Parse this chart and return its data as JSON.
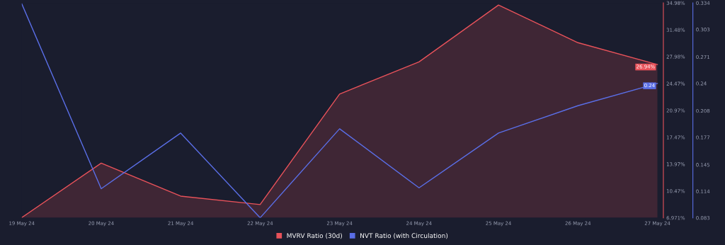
{
  "chart_data": {
    "type": "area",
    "categories": [
      "19 May 24",
      "20 May 24",
      "21 May 24",
      "22 May 24",
      "23 May 24",
      "24 May 24",
      "25 May 24",
      "26 May 24",
      "27 May 24"
    ],
    "series": [
      {
        "name": "MVRV Ratio (30d)",
        "color": "#e8525a",
        "values": [
          7.0,
          14.1,
          9.8,
          8.7,
          23.1,
          27.3,
          34.7,
          29.8,
          26.94
        ],
        "value_labels": [
          null,
          null,
          null,
          null,
          null,
          null,
          null,
          null,
          "26.94%"
        ]
      },
      {
        "name": "NVT Ratio (with Circulation)",
        "type": "line",
        "axis": "y2",
        "color": "#5a6ee6",
        "values": [
          0.333,
          0.117,
          0.182,
          0.083,
          0.187,
          0.118,
          0.182,
          0.214,
          0.24
        ],
        "value_labels": [
          null,
          null,
          null,
          null,
          null,
          null,
          null,
          null,
          "0.24"
        ]
      }
    ],
    "ylim": [
      6.971,
      34.98
    ],
    "yticks": [
      {
        "value": 6.971,
        "label": "6.971%"
      },
      {
        "value": 10.47,
        "label": "10.47%"
      },
      {
        "value": 13.97,
        "label": "13.97%"
      },
      {
        "value": 17.47,
        "label": "17.47%"
      },
      {
        "value": 20.97,
        "label": "20.97%"
      },
      {
        "value": 24.47,
        "label": "24.47%"
      },
      {
        "value": 27.98,
        "label": "27.98%"
      },
      {
        "value": 31.48,
        "label": "31.48%"
      },
      {
        "value": 34.98,
        "label": "34.98%"
      }
    ],
    "y2lim": [
      0.083,
      0.334
    ],
    "y2ticks": [
      0.083,
      0.114,
      0.145,
      0.177,
      0.208,
      0.24,
      0.271,
      0.303,
      0.334
    ],
    "legend": "bottom"
  }
}
